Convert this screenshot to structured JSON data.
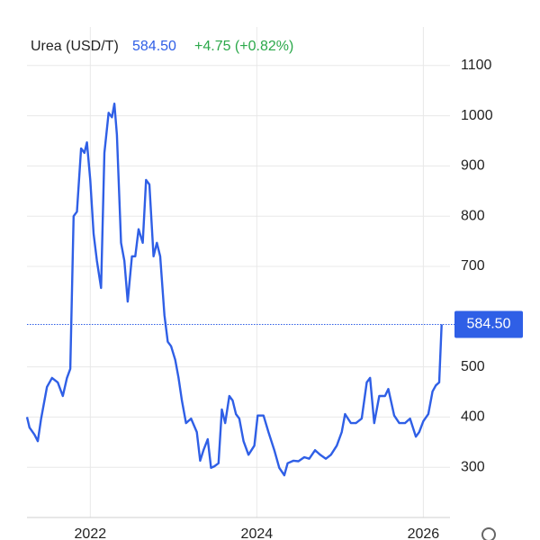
{
  "chart_data": {
    "type": "line",
    "title": "Urea (USD/T)",
    "price": "584.50",
    "change": "+4.75 (+0.82%)",
    "x": [
      2021.24,
      2021.27,
      2021.33,
      2021.37,
      2021.41,
      2021.48,
      2021.54,
      2021.61,
      2021.67,
      2021.72,
      2021.76,
      2021.8,
      2021.84,
      2021.89,
      2021.93,
      2021.96,
      2022.0,
      2022.04,
      2022.08,
      2022.13,
      2022.17,
      2022.22,
      2022.26,
      2022.29,
      2022.32,
      2022.37,
      2022.41,
      2022.45,
      2022.5,
      2022.54,
      2022.58,
      2022.63,
      2022.67,
      2022.71,
      2022.76,
      2022.8,
      2022.84,
      2022.89,
      2022.93,
      2022.97,
      2023.02,
      2023.06,
      2023.1,
      2023.15,
      2023.21,
      2023.28,
      2023.32,
      2023.36,
      2023.41,
      2023.45,
      2023.49,
      2023.54,
      2023.58,
      2023.62,
      2023.67,
      2023.71,
      2023.75,
      2023.79,
      2023.84,
      2023.9,
      2023.97,
      2024.01,
      2024.08,
      2024.14,
      2024.21,
      2024.27,
      2024.33,
      2024.37,
      2024.44,
      2024.5,
      2024.57,
      2024.63,
      2024.7,
      2024.76,
      2024.83,
      2024.89,
      2024.96,
      2025.02,
      2025.06,
      2025.13,
      2025.19,
      2025.26,
      2025.32,
      2025.36,
      2025.41,
      2025.47,
      2025.54,
      2025.58,
      2025.65,
      2025.71,
      2025.78,
      2025.84,
      2025.91,
      2025.95,
      2026.0,
      2026.06,
      2026.11,
      2026.15,
      2026.19,
      2026.22
    ],
    "series": [
      {
        "name": "Urea",
        "color": "#2f5fe6",
        "values": [
          400,
          379,
          365,
          352,
          397,
          460,
          478,
          469,
          442,
          478,
          496,
          800,
          809,
          935,
          926,
          947,
          872,
          765,
          711,
          657,
          926,
          1006,
          997,
          1024,
          962,
          747,
          711,
          630,
          720,
          720,
          774,
          747,
          872,
          863,
          720,
          747,
          720,
          603,
          550,
          541,
          514,
          478,
          433,
          388,
          397,
          370,
          313,
          334,
          356,
          299,
          302,
          308,
          415,
          388,
          442,
          433,
          406,
          397,
          352,
          325,
          343,
          403,
          403,
          370,
          334,
          299,
          284,
          308,
          313,
          312,
          320,
          317,
          334,
          325,
          317,
          325,
          343,
          370,
          406,
          388,
          388,
          397,
          469,
          478,
          388,
          442,
          442,
          456,
          403,
          388,
          388,
          397,
          361,
          370,
          392,
          406,
          451,
          463,
          469,
          584.5
        ]
      }
    ],
    "xlim": [
      2021.24,
      2026.32
    ],
    "xticks": [
      2022,
      2024,
      2026
    ],
    "ylim": [
      200,
      1200
    ],
    "yticks": [
      300,
      400,
      500,
      700,
      800,
      900,
      1000,
      1100
    ],
    "grid": true
  }
}
